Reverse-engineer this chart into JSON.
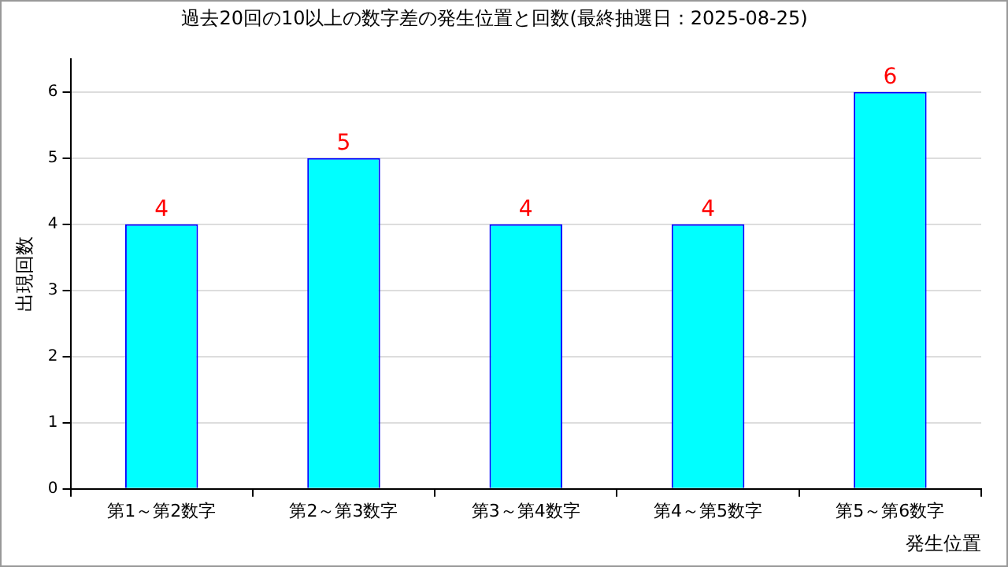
{
  "chart_data": {
    "type": "bar",
    "title": "過去20回の10以上の数字差の発生位置と回数(最終抽選日：2025-08-25)",
    "xlabel": "発生位置",
    "ylabel": "出現回数",
    "categories": [
      "第1～第2数字",
      "第2～第3数字",
      "第3～第4数字",
      "第4～第5数字",
      "第5～第6数字"
    ],
    "values": [
      4,
      5,
      4,
      4,
      6
    ],
    "color": "#00ffff",
    "ylim": [
      0,
      6.5
    ],
    "yticks": [
      0,
      1,
      2,
      3,
      4,
      5,
      6
    ],
    "grid": "y",
    "data_labels": true
  }
}
